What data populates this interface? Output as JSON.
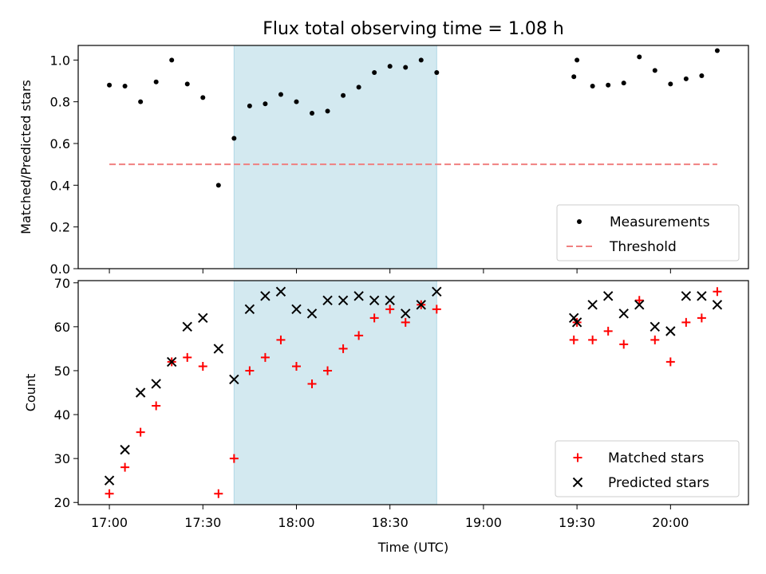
{
  "chart_data": [
    {
      "type": "scatter",
      "title": "Flux total observing time = 1.08 h",
      "ylabel": "Matched/Predicted stars",
      "xlabel": "",
      "xlim": [
        "16:50",
        "20:25"
      ],
      "ylim": [
        0.0,
        1.07
      ],
      "yticks": [
        "0.0",
        "0.2",
        "0.4",
        "0.6",
        "0.8",
        "1.0"
      ],
      "shaded_interval": [
        "17:40",
        "18:45"
      ],
      "shaded_color": "#d3e9f0",
      "threshold": {
        "name": "Threshold",
        "value": 0.5,
        "x_range": [
          "17:00",
          "20:15"
        ],
        "color": "#f08080",
        "style": "dashed"
      },
      "legend_position": "lower right",
      "series": [
        {
          "name": "Measurements",
          "color": "#000000",
          "marker": "dot",
          "points": [
            [
              "17:00",
              0.88
            ],
            [
              "17:05",
              0.875
            ],
            [
              "17:10",
              0.8
            ],
            [
              "17:15",
              0.895
            ],
            [
              "17:20",
              1.0
            ],
            [
              "17:25",
              0.885
            ],
            [
              "17:30",
              0.82
            ],
            [
              "17:35",
              0.4
            ],
            [
              "17:40",
              0.625
            ],
            [
              "17:45",
              0.78
            ],
            [
              "17:50",
              0.79
            ],
            [
              "17:55",
              0.835
            ],
            [
              "18:00",
              0.8
            ],
            [
              "18:05",
              0.745
            ],
            [
              "18:10",
              0.755
            ],
            [
              "18:15",
              0.83
            ],
            [
              "18:20",
              0.87
            ],
            [
              "18:25",
              0.94
            ],
            [
              "18:30",
              0.97
            ],
            [
              "18:35",
              0.965
            ],
            [
              "18:40",
              1.0
            ],
            [
              "18:45",
              0.94
            ],
            [
              "19:29",
              0.92
            ],
            [
              "19:30",
              1.0
            ],
            [
              "19:35",
              0.875
            ],
            [
              "19:40",
              0.88
            ],
            [
              "19:45",
              0.89
            ],
            [
              "19:50",
              1.015
            ],
            [
              "19:55",
              0.95
            ],
            [
              "20:00",
              0.885
            ],
            [
              "20:05",
              0.91
            ],
            [
              "20:10",
              0.925
            ],
            [
              "20:15",
              1.045
            ]
          ]
        }
      ]
    },
    {
      "type": "scatter",
      "title": "",
      "ylabel": "Count",
      "xlabel": "Time (UTC)",
      "xlim": [
        "16:50",
        "20:25"
      ],
      "ylim": [
        19.5,
        70.5
      ],
      "yticks": [
        "20",
        "30",
        "40",
        "50",
        "60",
        "70"
      ],
      "xticks": [
        "17:00",
        "17:30",
        "18:00",
        "18:30",
        "19:00",
        "19:30",
        "20:00"
      ],
      "shaded_interval": [
        "17:40",
        "18:45"
      ],
      "shaded_color": "#d3e9f0",
      "legend_position": "lower right",
      "series": [
        {
          "name": "Matched stars",
          "color": "#ff0000",
          "marker": "plus",
          "points": [
            [
              "17:00",
              22
            ],
            [
              "17:05",
              28
            ],
            [
              "17:10",
              36
            ],
            [
              "17:15",
              42
            ],
            [
              "17:20",
              52
            ],
            [
              "17:25",
              53
            ],
            [
              "17:30",
              51
            ],
            [
              "17:35",
              22
            ],
            [
              "17:40",
              30
            ],
            [
              "17:45",
              50
            ],
            [
              "17:50",
              53
            ],
            [
              "17:55",
              57
            ],
            [
              "18:00",
              51
            ],
            [
              "18:05",
              47
            ],
            [
              "18:10",
              50
            ],
            [
              "18:15",
              55
            ],
            [
              "18:20",
              58
            ],
            [
              "18:25",
              62
            ],
            [
              "18:30",
              64
            ],
            [
              "18:35",
              61
            ],
            [
              "18:40",
              65
            ],
            [
              "18:45",
              64
            ],
            [
              "19:29",
              57
            ],
            [
              "19:30",
              61
            ],
            [
              "19:35",
              57
            ],
            [
              "19:40",
              59
            ],
            [
              "19:45",
              56
            ],
            [
              "19:50",
              66
            ],
            [
              "19:55",
              57
            ],
            [
              "20:00",
              52
            ],
            [
              "20:05",
              61
            ],
            [
              "20:10",
              62
            ],
            [
              "20:15",
              68
            ]
          ]
        },
        {
          "name": "Predicted stars",
          "color": "#000000",
          "marker": "x",
          "points": [
            [
              "17:00",
              25
            ],
            [
              "17:05",
              32
            ],
            [
              "17:10",
              45
            ],
            [
              "17:15",
              47
            ],
            [
              "17:20",
              52
            ],
            [
              "17:25",
              60
            ],
            [
              "17:30",
              62
            ],
            [
              "17:35",
              55
            ],
            [
              "17:40",
              48
            ],
            [
              "17:45",
              64
            ],
            [
              "17:50",
              67
            ],
            [
              "17:55",
              68
            ],
            [
              "18:00",
              64
            ],
            [
              "18:05",
              63
            ],
            [
              "18:10",
              66
            ],
            [
              "18:15",
              66
            ],
            [
              "18:20",
              67
            ],
            [
              "18:25",
              66
            ],
            [
              "18:30",
              66
            ],
            [
              "18:35",
              63
            ],
            [
              "18:40",
              65
            ],
            [
              "18:45",
              68
            ],
            [
              "19:29",
              62
            ],
            [
              "19:30",
              61
            ],
            [
              "19:35",
              65
            ],
            [
              "19:40",
              67
            ],
            [
              "19:45",
              63
            ],
            [
              "19:50",
              65
            ],
            [
              "19:55",
              60
            ],
            [
              "20:00",
              59
            ],
            [
              "20:05",
              67
            ],
            [
              "20:10",
              67
            ],
            [
              "20:15",
              65
            ]
          ]
        }
      ]
    }
  ]
}
